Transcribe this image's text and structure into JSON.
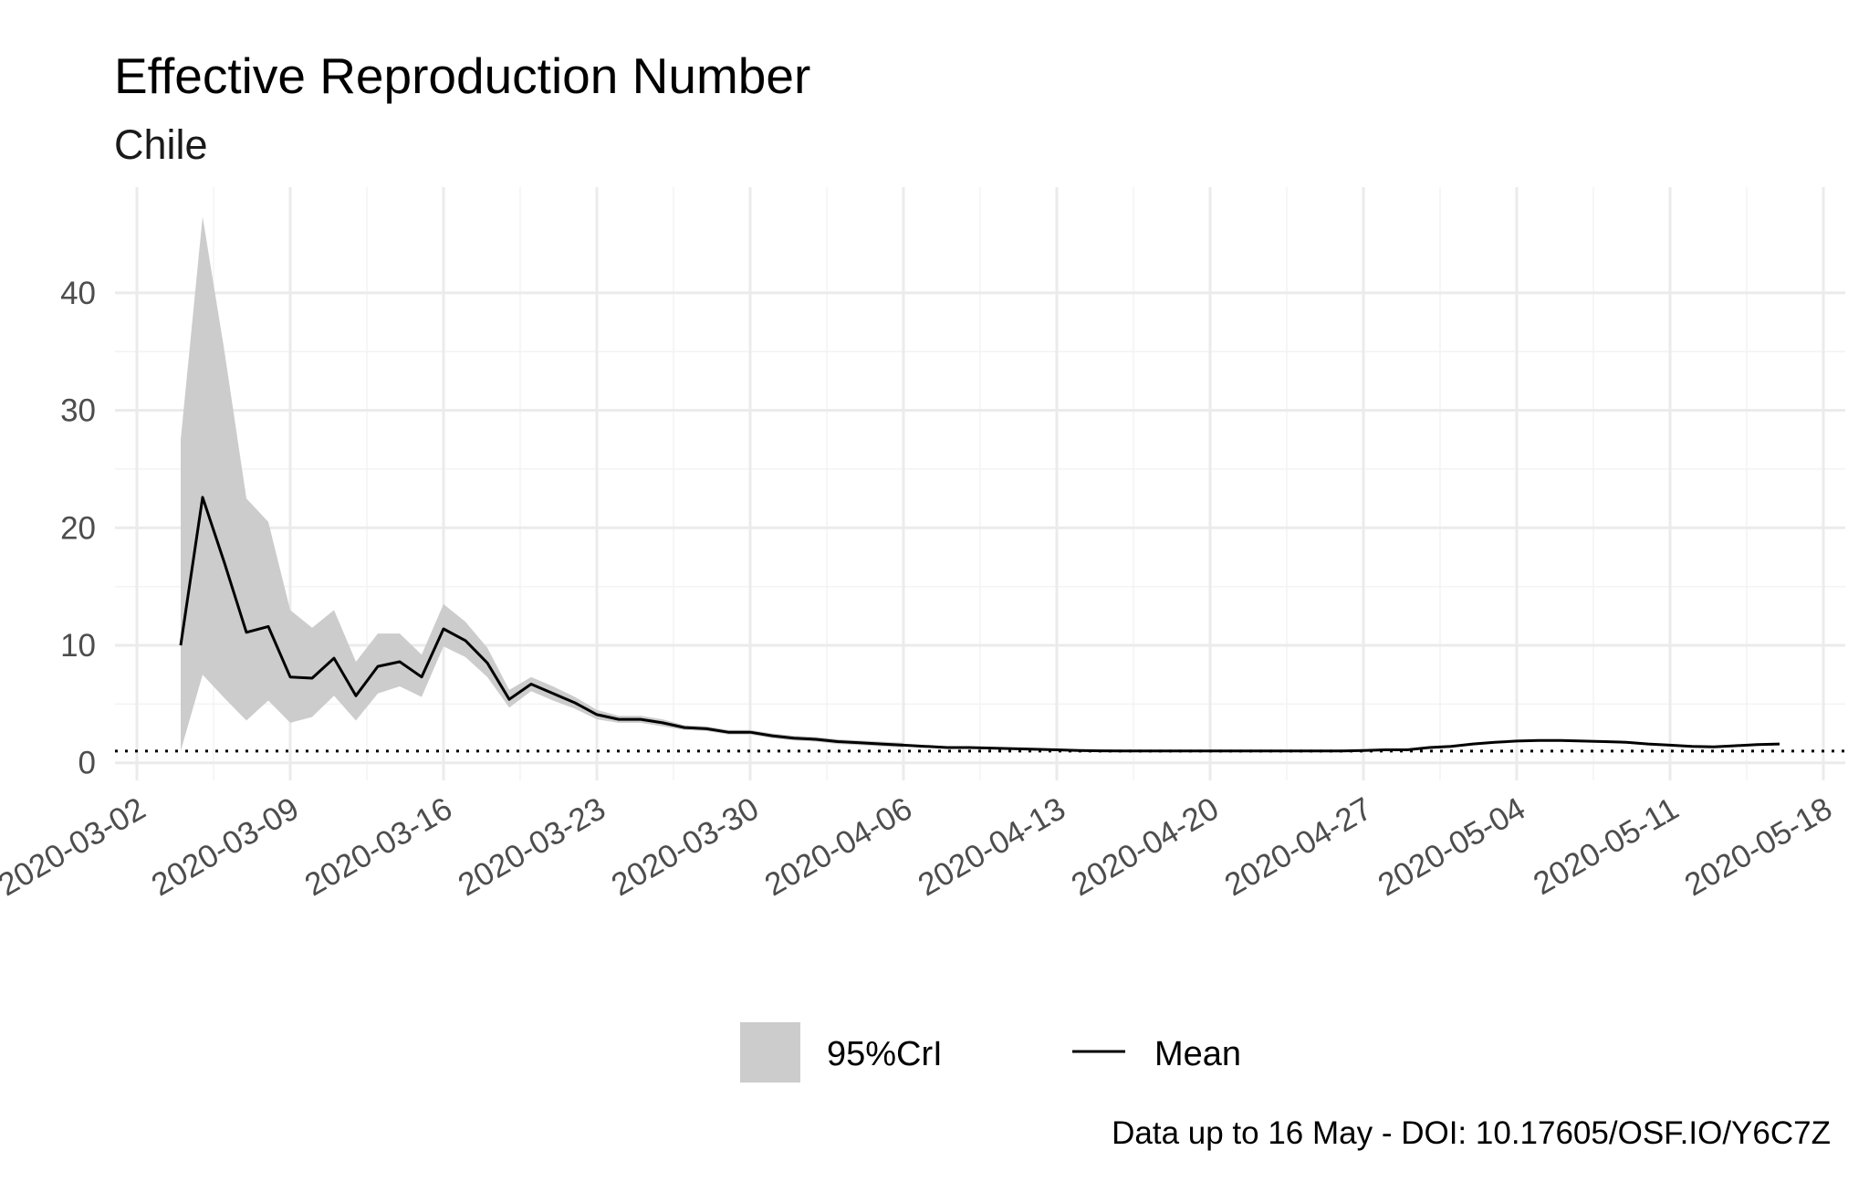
{
  "chart_data": {
    "type": "area",
    "title": "Effective Reproduction Number",
    "subtitle": "Chile",
    "caption": "Data up to 16 May - DOI: 10.17605/OSF.IO/Y6C7Z",
    "xlabel": "",
    "ylabel": "",
    "xlim": [
      "2020-03-01",
      "2020-05-19"
    ],
    "ylim": [
      -1.5,
      49
    ],
    "x_ticks": [
      "2020-03-02",
      "2020-03-09",
      "2020-03-16",
      "2020-03-23",
      "2020-03-30",
      "2020-04-06",
      "2020-04-13",
      "2020-04-20",
      "2020-04-27",
      "2020-05-04",
      "2020-05-11",
      "2020-05-18"
    ],
    "y_ticks": [
      0,
      10,
      20,
      30,
      40
    ],
    "y_tick_labels": [
      "0",
      "10",
      "20",
      "30",
      "40"
    ],
    "grid": true,
    "reference_line": {
      "y": 1,
      "style": "dotted"
    },
    "legend": {
      "position": "bottom",
      "items": [
        {
          "label": "95%CrI",
          "kind": "ribbon",
          "color": "#cccccc"
        },
        {
          "label": "Mean",
          "kind": "line",
          "color": "#000000"
        }
      ]
    },
    "series": [
      {
        "name": "Mean",
        "x": [
          "2020-03-04",
          "2020-03-05",
          "2020-03-06",
          "2020-03-07",
          "2020-03-08",
          "2020-03-09",
          "2020-03-10",
          "2020-03-11",
          "2020-03-12",
          "2020-03-13",
          "2020-03-14",
          "2020-03-15",
          "2020-03-16",
          "2020-03-17",
          "2020-03-18",
          "2020-03-19",
          "2020-03-20",
          "2020-03-21",
          "2020-03-22",
          "2020-03-23",
          "2020-03-24",
          "2020-03-25",
          "2020-03-26",
          "2020-03-27",
          "2020-03-28",
          "2020-03-29",
          "2020-03-30",
          "2020-03-31",
          "2020-04-01",
          "2020-04-02",
          "2020-04-03",
          "2020-04-04",
          "2020-04-05",
          "2020-04-06",
          "2020-04-07",
          "2020-04-08",
          "2020-04-09",
          "2020-04-10",
          "2020-04-11",
          "2020-04-12",
          "2020-04-13",
          "2020-04-14",
          "2020-04-15",
          "2020-04-16",
          "2020-04-17",
          "2020-04-18",
          "2020-04-19",
          "2020-04-20",
          "2020-04-21",
          "2020-04-22",
          "2020-04-23",
          "2020-04-24",
          "2020-04-25",
          "2020-04-26",
          "2020-04-27",
          "2020-04-28",
          "2020-04-29",
          "2020-04-30",
          "2020-05-01",
          "2020-05-02",
          "2020-05-03",
          "2020-05-04",
          "2020-05-05",
          "2020-05-06",
          "2020-05-07",
          "2020-05-08",
          "2020-05-09",
          "2020-05-10",
          "2020-05-11",
          "2020-05-12",
          "2020-05-13",
          "2020-05-14",
          "2020-05-15",
          "2020-05-16"
        ],
        "values": [
          10.0,
          22.6,
          17.0,
          11.1,
          11.6,
          7.3,
          7.2,
          8.9,
          5.7,
          8.2,
          8.6,
          7.3,
          11.4,
          10.4,
          8.5,
          5.4,
          6.7,
          5.9,
          5.1,
          4.1,
          3.7,
          3.7,
          3.4,
          3.0,
          2.9,
          2.6,
          2.6,
          2.3,
          2.1,
          2.0,
          1.8,
          1.7,
          1.6,
          1.5,
          1.4,
          1.3,
          1.3,
          1.25,
          1.2,
          1.15,
          1.1,
          1.05,
          1.02,
          1.0,
          1.0,
          1.0,
          1.0,
          1.0,
          1.0,
          1.0,
          1.0,
          1.0,
          1.0,
          1.0,
          1.05,
          1.1,
          1.1,
          1.3,
          1.4,
          1.6,
          1.75,
          1.85,
          1.9,
          1.9,
          1.85,
          1.8,
          1.75,
          1.6,
          1.5,
          1.4,
          1.35,
          1.45,
          1.55,
          1.6
        ]
      },
      {
        "name": "95%CrI",
        "x": [
          "2020-03-04",
          "2020-03-05",
          "2020-03-06",
          "2020-03-07",
          "2020-03-08",
          "2020-03-09",
          "2020-03-10",
          "2020-03-11",
          "2020-03-12",
          "2020-03-13",
          "2020-03-14",
          "2020-03-15",
          "2020-03-16",
          "2020-03-17",
          "2020-03-18",
          "2020-03-19",
          "2020-03-20",
          "2020-03-21",
          "2020-03-22",
          "2020-03-23",
          "2020-03-24",
          "2020-03-25",
          "2020-03-26",
          "2020-03-27",
          "2020-03-28",
          "2020-03-29",
          "2020-03-30",
          "2020-03-31",
          "2020-04-01",
          "2020-04-02",
          "2020-04-03",
          "2020-04-04",
          "2020-04-05",
          "2020-04-06"
        ],
        "lower": [
          1.0,
          7.5,
          5.5,
          3.6,
          5.3,
          3.4,
          3.9,
          5.7,
          3.6,
          5.9,
          6.5,
          5.6,
          9.9,
          9.0,
          7.3,
          4.7,
          6.1,
          5.3,
          4.6,
          3.7,
          3.4,
          3.4,
          3.1,
          2.8,
          2.7,
          2.4,
          2.4,
          2.1,
          1.9,
          1.8,
          1.6,
          1.5,
          1.4,
          1.3
        ],
        "upper": [
          27.5,
          46.5,
          35.0,
          22.5,
          20.5,
          13.0,
          11.5,
          13.0,
          8.6,
          11.0,
          11.0,
          9.2,
          13.5,
          12.0,
          9.8,
          6.2,
          7.3,
          6.5,
          5.6,
          4.5,
          4.0,
          4.0,
          3.7,
          3.2,
          3.1,
          2.8,
          2.8,
          2.5,
          2.3,
          2.2,
          2.0,
          1.9,
          1.8,
          1.7
        ]
      }
    ]
  }
}
